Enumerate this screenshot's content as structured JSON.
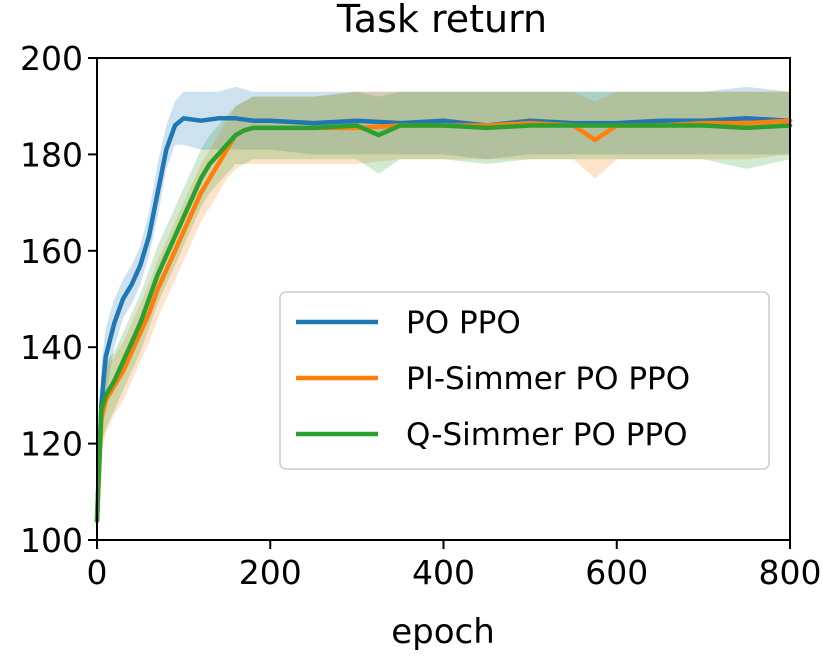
{
  "chart_data": {
    "type": "line",
    "title": "Task return",
    "xlabel": "epoch",
    "ylabel": "",
    "xlim": [
      0,
      800
    ],
    "ylim": [
      100,
      200
    ],
    "xticks": [
      0,
      200,
      400,
      600,
      800
    ],
    "yticks": [
      100,
      120,
      140,
      160,
      180,
      200
    ],
    "grid": false,
    "legend_position": "center-right",
    "series": [
      {
        "name": "PO PPO",
        "color": "#1f77b4",
        "x": [
          0,
          5,
          10,
          20,
          30,
          40,
          50,
          60,
          70,
          80,
          90,
          100,
          120,
          140,
          160,
          180,
          200,
          250,
          300,
          350,
          400,
          450,
          500,
          550,
          600,
          650,
          700,
          750,
          800
        ],
        "y": [
          104,
          128,
          138,
          145,
          150,
          153,
          157,
          163,
          172,
          181,
          186,
          187.5,
          187,
          187.5,
          187.5,
          187,
          187,
          186.5,
          187,
          186.5,
          187,
          186,
          187,
          186.5,
          186.5,
          187,
          187,
          187.5,
          187
        ],
        "band_lower": [
          100,
          120,
          130,
          140,
          146,
          149,
          153,
          159,
          167,
          177,
          182,
          182,
          181,
          181,
          181,
          181,
          181,
          180,
          180,
          180,
          180,
          179,
          180,
          180,
          180,
          180,
          180,
          180,
          180
        ],
        "band_upper": [
          108,
          136,
          144,
          150,
          154,
          157,
          161,
          168,
          178,
          186,
          191,
          193,
          193,
          193,
          194,
          193,
          193,
          193,
          193,
          193,
          193,
          193,
          193,
          193,
          193,
          193,
          193,
          194,
          193
        ]
      },
      {
        "name": "PI-Simmer PO PPO",
        "color": "#ff7f0e",
        "x": [
          0,
          5,
          10,
          20,
          30,
          40,
          50,
          60,
          70,
          80,
          90,
          100,
          110,
          120,
          130,
          140,
          150,
          160,
          170,
          180,
          200,
          250,
          300,
          350,
          400,
          450,
          500,
          550,
          575,
          600,
          650,
          700,
          750,
          800
        ],
        "y": [
          104,
          125,
          129,
          132,
          135,
          139,
          143,
          147,
          152,
          156,
          160,
          164,
          168,
          172,
          175,
          178,
          181,
          184,
          185,
          185.5,
          185.5,
          185.5,
          185.5,
          186,
          186,
          186,
          186.5,
          186,
          183,
          186,
          186,
          186.5,
          186.5,
          187
        ],
        "band_lower": [
          100,
          118,
          122,
          126,
          129,
          133,
          137,
          141,
          146,
          150,
          154,
          158,
          162,
          166,
          169,
          172,
          175,
          177,
          178,
          178,
          178,
          178,
          178,
          179,
          179,
          179,
          179,
          179,
          175,
          179,
          179,
          179,
          179,
          180
        ],
        "band_upper": [
          108,
          132,
          136,
          138,
          141,
          145,
          149,
          153,
          158,
          162,
          166,
          170,
          174,
          178,
          181,
          184,
          187,
          190,
          191,
          192,
          192,
          192,
          193,
          193,
          193,
          193,
          193,
          193,
          191,
          193,
          193,
          193,
          193,
          193
        ]
      },
      {
        "name": "Q-Simmer PO PPO",
        "color": "#2ca02c",
        "x": [
          0,
          5,
          10,
          20,
          30,
          40,
          50,
          60,
          70,
          80,
          90,
          100,
          110,
          120,
          130,
          140,
          150,
          160,
          170,
          180,
          200,
          250,
          300,
          325,
          350,
          400,
          450,
          500,
          550,
          600,
          650,
          700,
          750,
          800
        ],
        "y": [
          104,
          127,
          130,
          133,
          137,
          141,
          145,
          150,
          155,
          159,
          163,
          167,
          171,
          175,
          178,
          180,
          182,
          184,
          185,
          185.5,
          185.5,
          185.5,
          186,
          184,
          186,
          186,
          185.5,
          186,
          186,
          186,
          186,
          186,
          185.5,
          186
        ],
        "band_lower": [
          100,
          120,
          123,
          127,
          131,
          135,
          139,
          144,
          149,
          153,
          157,
          161,
          165,
          169,
          172,
          174,
          176,
          178,
          178,
          179,
          179,
          179,
          179,
          176,
          179,
          179,
          178,
          179,
          179,
          179,
          179,
          179,
          177,
          179
        ],
        "band_upper": [
          108,
          134,
          137,
          139,
          143,
          147,
          151,
          156,
          161,
          165,
          169,
          173,
          177,
          181,
          184,
          186,
          188,
          190,
          191,
          192,
          192,
          192,
          193,
          192,
          193,
          193,
          193,
          193,
          193,
          193,
          193,
          193,
          193,
          193
        ]
      }
    ]
  }
}
